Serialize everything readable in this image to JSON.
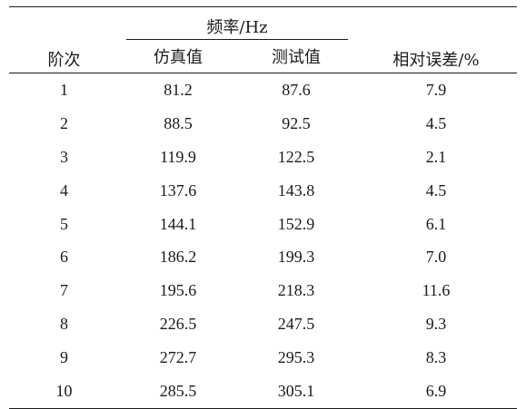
{
  "table": {
    "header": {
      "order": "阶次",
      "frequency_group": "频率/Hz",
      "simulated": "仿真值",
      "measured": "测试值",
      "relative_error": "相对误差/%"
    },
    "rows": [
      {
        "order": "1",
        "simulated": "81.2",
        "measured": "87.6",
        "error": "7.9"
      },
      {
        "order": "2",
        "simulated": "88.5",
        "measured": "92.5",
        "error": "4.5"
      },
      {
        "order": "3",
        "simulated": "119.9",
        "measured": "122.5",
        "error": "2.1"
      },
      {
        "order": "4",
        "simulated": "137.6",
        "measured": "143.8",
        "error": "4.5"
      },
      {
        "order": "5",
        "simulated": "144.1",
        "measured": "152.9",
        "error": "6.1"
      },
      {
        "order": "6",
        "simulated": "186.2",
        "measured": "199.3",
        "error": "7.0"
      },
      {
        "order": "7",
        "simulated": "195.6",
        "measured": "218.3",
        "error": "11.6"
      },
      {
        "order": "8",
        "simulated": "226.5",
        "measured": "247.5",
        "error": "9.3"
      },
      {
        "order": "9",
        "simulated": "272.7",
        "measured": "295.3",
        "error": "8.3"
      },
      {
        "order": "10",
        "simulated": "285.5",
        "measured": "305.1",
        "error": "6.9"
      }
    ]
  }
}
